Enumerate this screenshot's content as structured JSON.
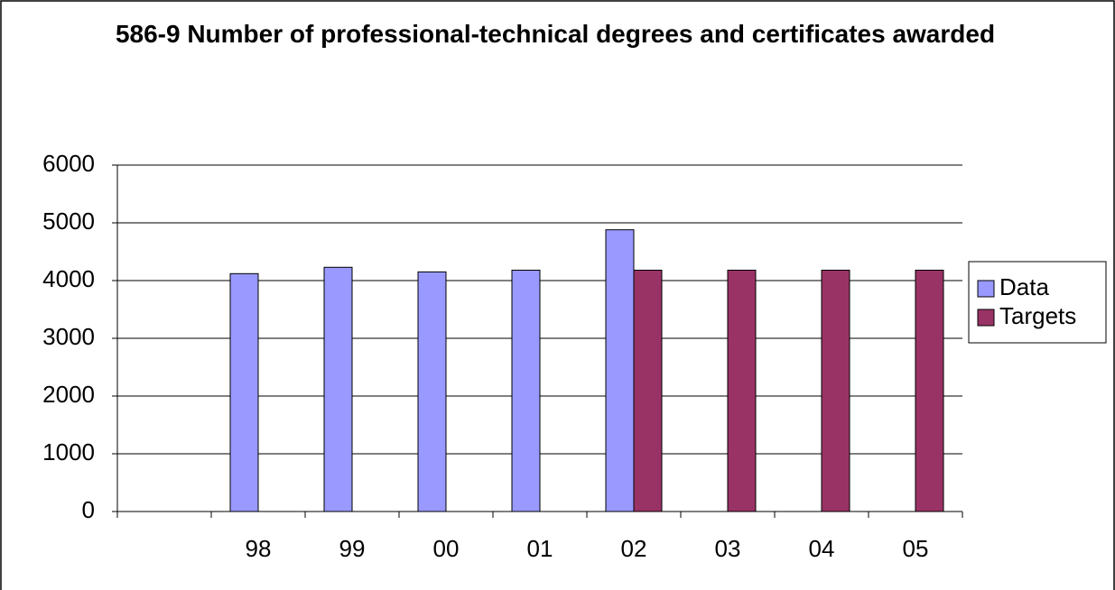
{
  "chart_data": {
    "type": "bar",
    "title": "586-9 Number of professional-technical degrees and certificates awarded",
    "categories": [
      null,
      "98",
      "99",
      "00",
      "01",
      "02",
      "03",
      "04",
      "05"
    ],
    "series": [
      {
        "name": "Data",
        "color": "#9999ff",
        "values": [
          null,
          4120,
          4230,
          4150,
          4180,
          4880,
          null,
          null,
          null
        ]
      },
      {
        "name": "Targets",
        "color": "#993366",
        "values": [
          null,
          null,
          null,
          null,
          null,
          4180,
          4180,
          4180,
          4180
        ]
      }
    ],
    "ylim": [
      0,
      6000
    ],
    "yticks": [
      0,
      1000,
      2000,
      3000,
      4000,
      5000,
      6000
    ],
    "grid": true,
    "legend": "right"
  }
}
